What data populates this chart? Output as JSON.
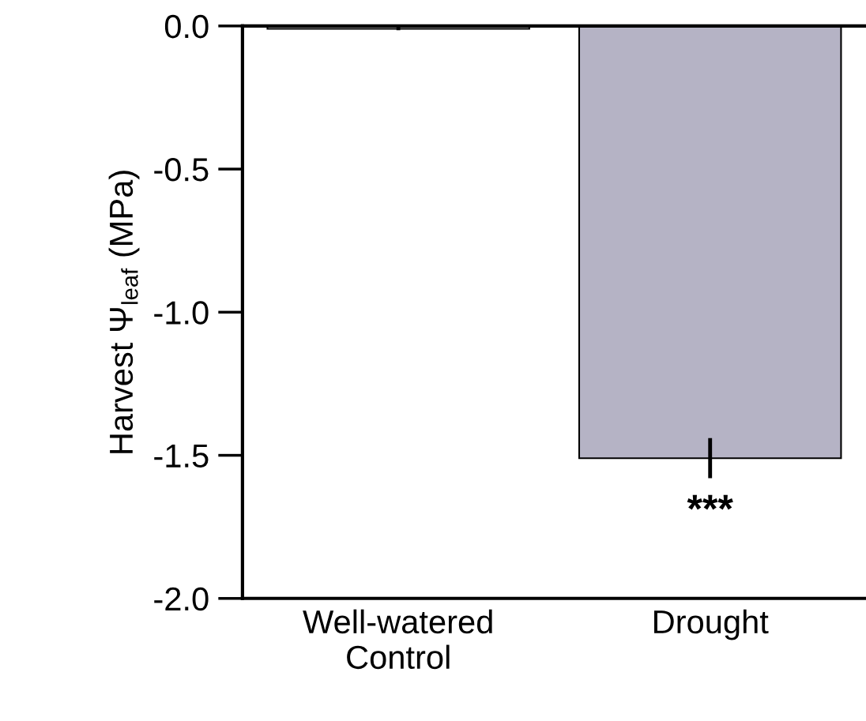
{
  "chart_data": {
    "type": "bar",
    "ylabel": "Harvest Ψ$_{leaf}$ (MPa)",
    "categories": [
      "Well-watered\nControl",
      "Drought"
    ],
    "values": [
      -0.01,
      -1.51
    ],
    "errors": [
      0.005,
      0.07
    ],
    "colors": [
      "#ffffff",
      "#b3b0c8"
    ],
    "ylim": [
      -2.0,
      0.0
    ],
    "yticks": [
      {
        "value": -2.0,
        "label": "-2.0"
      },
      {
        "value": -1.5,
        "label": "-1.5"
      },
      {
        "value": -1.0,
        "label": "-1.0"
      },
      {
        "value": -0.5,
        "label": "-0.5"
      },
      {
        "value": 0.0,
        "label": "0.0"
      }
    ],
    "annotations": [
      "***"
    ],
    "grid": false,
    "legend": false
  }
}
